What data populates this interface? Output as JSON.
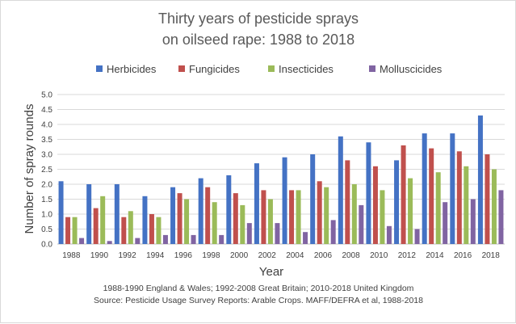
{
  "chart_data": {
    "type": "bar",
    "title_lines": [
      "Thirty years of pesticide sprays",
      "on oilseed rape: 1988 to 2018"
    ],
    "xlabel": "Year",
    "ylabel": "Number of spray rounds",
    "ylim": [
      0,
      5
    ],
    "ytick_step": 0.5,
    "grid": true,
    "legend_position": "top",
    "categories": [
      "1988",
      "1990",
      "1992",
      "1994",
      "1996",
      "1998",
      "2000",
      "2002",
      "2004",
      "2006",
      "2008",
      "2010",
      "2012",
      "2014",
      "2016",
      "2018"
    ],
    "series": [
      {
        "name": "Herbicides",
        "color": "#4472c4",
        "values": [
          2.1,
          2.0,
          2.0,
          1.6,
          1.9,
          2.2,
          2.3,
          2.7,
          2.9,
          3.0,
          3.6,
          3.4,
          2.8,
          3.7,
          3.7,
          4.3
        ]
      },
      {
        "name": "Fungicides",
        "color": "#c0504d",
        "values": [
          0.9,
          1.2,
          0.9,
          1.0,
          1.7,
          1.9,
          1.7,
          1.8,
          1.8,
          2.1,
          2.8,
          2.6,
          3.3,
          3.2,
          3.1,
          3.0
        ]
      },
      {
        "name": "Insecticides",
        "color": "#9bbb59",
        "values": [
          0.9,
          1.6,
          1.1,
          0.9,
          1.5,
          1.4,
          1.3,
          1.5,
          1.8,
          1.9,
          2.0,
          1.8,
          2.2,
          2.4,
          2.6,
          2.5
        ]
      },
      {
        "name": "Molluscicides",
        "color": "#8064a2",
        "values": [
          0.2,
          0.1,
          0.2,
          0.3,
          0.3,
          0.3,
          0.7,
          0.7,
          0.4,
          0.8,
          1.3,
          0.6,
          0.5,
          1.4,
          1.5,
          1.8
        ]
      }
    ],
    "notes": [
      "1988-1990 England & Wales; 1992-2008 Great Britain; 2010-2018 United Kingdom",
      "Source:  Pesticide Usage Survey Reports: Arable Crops. MAFF/DEFRA  et al, 1988-2018"
    ]
  }
}
